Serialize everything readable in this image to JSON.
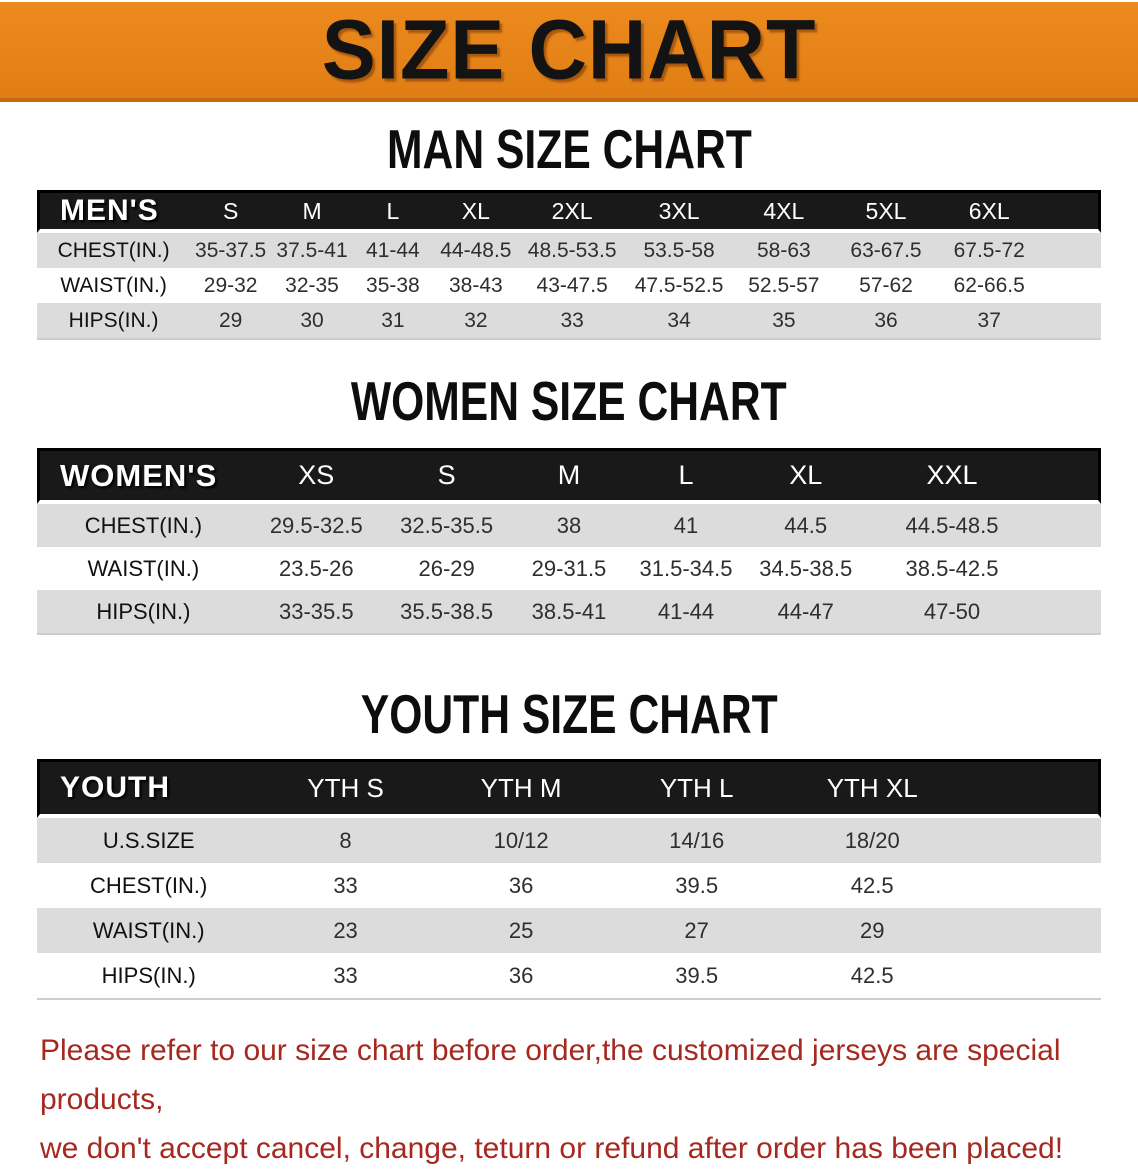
{
  "banner": {
    "title": "SIZE CHART"
  },
  "sections": {
    "men": {
      "title": "MAN SIZE CHART",
      "header": {
        "label": "MEN'S",
        "sizes": [
          "S",
          "M",
          "L",
          "XL",
          "2XL",
          "3XL",
          "4XL",
          "5XL",
          "6XL"
        ]
      },
      "rows": [
        {
          "label": "CHEST(IN.)",
          "values": [
            "35-37.5",
            "37.5-41",
            "41-44",
            "44-48.5",
            "48.5-53.5",
            "53.5-58",
            "58-63",
            "63-67.5",
            "67.5-72"
          ]
        },
        {
          "label": "WAIST(IN.)",
          "values": [
            "29-32",
            "32-35",
            "35-38",
            "38-43",
            "43-47.5",
            "47.5-52.5",
            "52.5-57",
            "57-62",
            "62-66.5"
          ]
        },
        {
          "label": "HIPS(IN.)",
          "values": [
            "29",
            "30",
            "31",
            "32",
            "33",
            "34",
            "35",
            "36",
            "37"
          ]
        }
      ]
    },
    "women": {
      "title": "WOMEN SIZE CHART",
      "header": {
        "label": "WOMEN'S",
        "sizes": [
          "XS",
          "S",
          "M",
          "L",
          "XL",
          "XXL"
        ]
      },
      "rows": [
        {
          "label": "CHEST(IN.)",
          "values": [
            "29.5-32.5",
            "32.5-35.5",
            "38",
            "41",
            "44.5",
            "44.5-48.5"
          ]
        },
        {
          "label": "WAIST(IN.)",
          "values": [
            "23.5-26",
            "26-29",
            "29-31.5",
            "31.5-34.5",
            "34.5-38.5",
            "38.5-42.5"
          ]
        },
        {
          "label": "HIPS(IN.)",
          "values": [
            "33-35.5",
            "35.5-38.5",
            "38.5-41",
            "41-44",
            "44-47",
            "47-50"
          ]
        }
      ]
    },
    "youth": {
      "title": "YOUTH SIZE CHART",
      "header": {
        "label": "YOUTH",
        "sizes": [
          "YTH S",
          "YTH M",
          "YTH L",
          "YTH XL"
        ]
      },
      "rows": [
        {
          "label": "U.S.SIZE",
          "values": [
            "8",
            "10/12",
            "14/16",
            "18/20"
          ]
        },
        {
          "label": "CHEST(IN.)",
          "values": [
            "33",
            "36",
            "39.5",
            "42.5"
          ]
        },
        {
          "label": "WAIST(IN.)",
          "values": [
            "23",
            "25",
            "27",
            "29"
          ]
        },
        {
          "label": "HIPS(IN.)",
          "values": [
            "33",
            "36",
            "39.5",
            "42.5"
          ]
        }
      ]
    }
  },
  "footer": {
    "line1": "Please refer to our size chart before order,the customized jerseys are special products,",
    "line2": "we don't accept cancel, change, teturn or refund after order has been placed!"
  },
  "colors": {
    "banner_orange": "#ED8A1E",
    "banner_orange_dark": "#E07E15",
    "banner_border": "#C4690E",
    "table_header_black": "#191919",
    "stripe_gray": "#DCDCDC",
    "note_red": "#A6281F"
  }
}
